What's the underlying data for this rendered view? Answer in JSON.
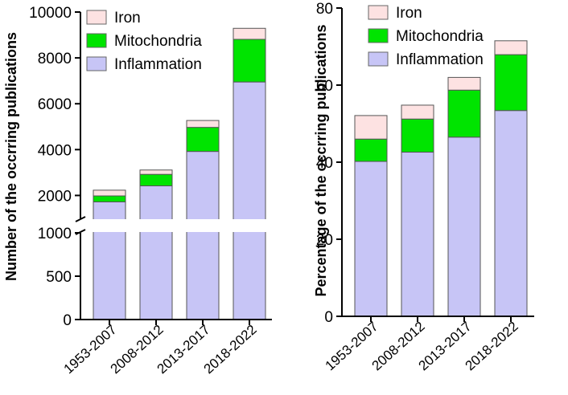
{
  "chart_data": [
    {
      "type": "bar",
      "stacked": true,
      "broken_y_axis": true,
      "ylabel": "Number of the occrring publications",
      "categories": [
        "1953-2007",
        "2008-2012",
        "2013-2017",
        "2018-2022"
      ],
      "series": [
        {
          "name": "Inflammation",
          "color": "#c7c5f6",
          "values": [
            1720,
            2420,
            3920,
            6950
          ]
        },
        {
          "name": "Mitochondria",
          "color": "#00e400",
          "values": [
            260,
            500,
            1050,
            1860
          ]
        },
        {
          "name": "Iron",
          "color": "#fde2e2",
          "values": [
            250,
            190,
            300,
            480
          ]
        }
      ],
      "legend": [
        "Iron",
        "Mitochondria",
        "Inflammation"
      ],
      "legend_position": "top-left",
      "y_segments": [
        {
          "range": [
            0,
            1000
          ],
          "ticks": [
            0,
            500,
            1000
          ]
        },
        {
          "range": [
            1000,
            10000
          ],
          "ticks": [
            2000,
            4000,
            6000,
            8000,
            10000
          ]
        }
      ],
      "ytick_labels": [
        "0",
        "500",
        "1000",
        "2000",
        "4000",
        "6000",
        "8000",
        "10000"
      ]
    },
    {
      "type": "bar",
      "stacked": true,
      "ylabel": "Percentage of the occrring publications",
      "categories": [
        "1953-2007",
        "2008-2012",
        "2013-2017",
        "2018-2022"
      ],
      "series": [
        {
          "name": "Inflammation",
          "color": "#c7c5f6",
          "values": [
            40.2,
            42.6,
            46.5,
            53.4
          ]
        },
        {
          "name": "Mitochondria",
          "color": "#00e400",
          "values": [
            5.8,
            8.6,
            12.2,
            14.5
          ]
        },
        {
          "name": "Iron",
          "color": "#fde2e2",
          "values": [
            6.1,
            3.6,
            3.3,
            3.6
          ]
        }
      ],
      "legend": [
        "Iron",
        "Mitochondria",
        "Inflammation"
      ],
      "legend_position": "top-left",
      "ylim": [
        0,
        80
      ],
      "yticks": [
        0,
        20,
        40,
        60,
        80
      ],
      "ytick_labels": [
        "0",
        "20",
        "40",
        "60",
        "80"
      ]
    }
  ]
}
